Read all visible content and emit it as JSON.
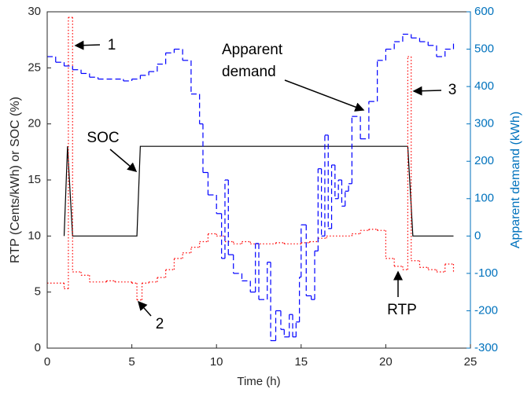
{
  "chart_data": {
    "type": "line",
    "xlabel": "Time (h)",
    "ylabel": "RTP (Cents/kWh) or SOC (%)",
    "y2label": "Apparent demand (kWh)",
    "y2color": "#0072bd",
    "xlim": [
      0,
      25
    ],
    "xticks": [
      0,
      5,
      10,
      15,
      20,
      25
    ],
    "ylim": [
      0,
      30
    ],
    "yticks": [
      0,
      5,
      10,
      15,
      20,
      25,
      30
    ],
    "y2lim": [
      -300,
      600
    ],
    "y2ticks": [
      -300,
      -200,
      -100,
      0,
      100,
      200,
      300,
      400,
      500,
      600
    ],
    "series": [
      {
        "name": "SOC",
        "color": "#000000",
        "style": "solid",
        "x": [
          1,
          1.2,
          1.5,
          5.3,
          5.5,
          21.3,
          21.6,
          24
        ],
        "values": [
          10,
          18,
          10,
          10,
          18,
          18,
          10,
          10
        ]
      },
      {
        "name": "RTP",
        "color": "#ff0000",
        "style": "dotted",
        "step": true,
        "x": [
          0,
          1,
          1.25,
          1.5,
          2,
          2.5,
          3.5,
          4,
          5,
          5.3,
          5.6,
          6,
          6.5,
          7,
          7.5,
          8,
          8.5,
          9,
          9.5,
          10,
          10.5,
          11,
          11.5,
          12,
          13.5,
          14,
          15,
          15.5,
          16,
          16.5,
          18,
          18.5,
          19,
          19.5,
          20,
          20.5,
          21,
          21.3,
          21.5,
          22,
          22.5,
          23,
          23.5,
          24
        ],
        "values": [
          5.8,
          5.3,
          29.5,
          6.8,
          6.5,
          5.9,
          6.0,
          5.9,
          5.8,
          4.3,
          5.8,
          5.9,
          6.3,
          7.0,
          8.0,
          8.5,
          9.0,
          9.5,
          10.2,
          10.0,
          9.5,
          9.3,
          9.5,
          9.3,
          9.4,
          9.3,
          9.4,
          9.5,
          9.8,
          10.0,
          10.2,
          10.5,
          10.6,
          10.5,
          8.0,
          7.3,
          7.0,
          26.0,
          7.8,
          7.2,
          7.0,
          6.8,
          7.5,
          6.8
        ]
      },
      {
        "name": "Apparent demand",
        "color": "#0000ff",
        "style": "dashed",
        "step": true,
        "axis": "y2",
        "x": [
          0,
          0.5,
          1,
          1.5,
          2,
          2.5,
          3,
          4.5,
          5,
          5.5,
          6,
          6.5,
          7,
          7.5,
          8,
          8.5,
          9,
          9.2,
          9.5,
          10,
          10.3,
          10.5,
          10.7,
          11,
          11.5,
          12,
          12.3,
          12.5,
          13,
          13.2,
          13.5,
          13.8,
          14,
          14.3,
          14.5,
          14.7,
          14.9,
          15,
          15.3,
          15.6,
          15.8,
          16,
          16.2,
          16.4,
          16.6,
          16.8,
          17,
          17.2,
          17.4,
          17.6,
          17.8,
          18,
          18.5,
          19,
          19.5,
          20,
          20.5,
          21,
          21.5,
          22,
          22.5,
          23,
          23.5,
          24
        ],
        "values": [
          480,
          465,
          455,
          445,
          435,
          425,
          420,
          415,
          420,
          430,
          440,
          460,
          490,
          500,
          470,
          380,
          300,
          170,
          110,
          60,
          -60,
          150,
          -50,
          -100,
          -120,
          -150,
          -20,
          -170,
          -70,
          -280,
          -200,
          -250,
          -270,
          -210,
          -270,
          -230,
          -110,
          30,
          -160,
          -170,
          -40,
          180,
          0,
          270,
          20,
          190,
          100,
          150,
          80,
          120,
          140,
          320,
          260,
          360,
          470,
          500,
          520,
          540,
          530,
          520,
          510,
          480,
          500,
          520
        ]
      }
    ],
    "annotations": [
      "1",
      "2",
      "3"
    ]
  }
}
